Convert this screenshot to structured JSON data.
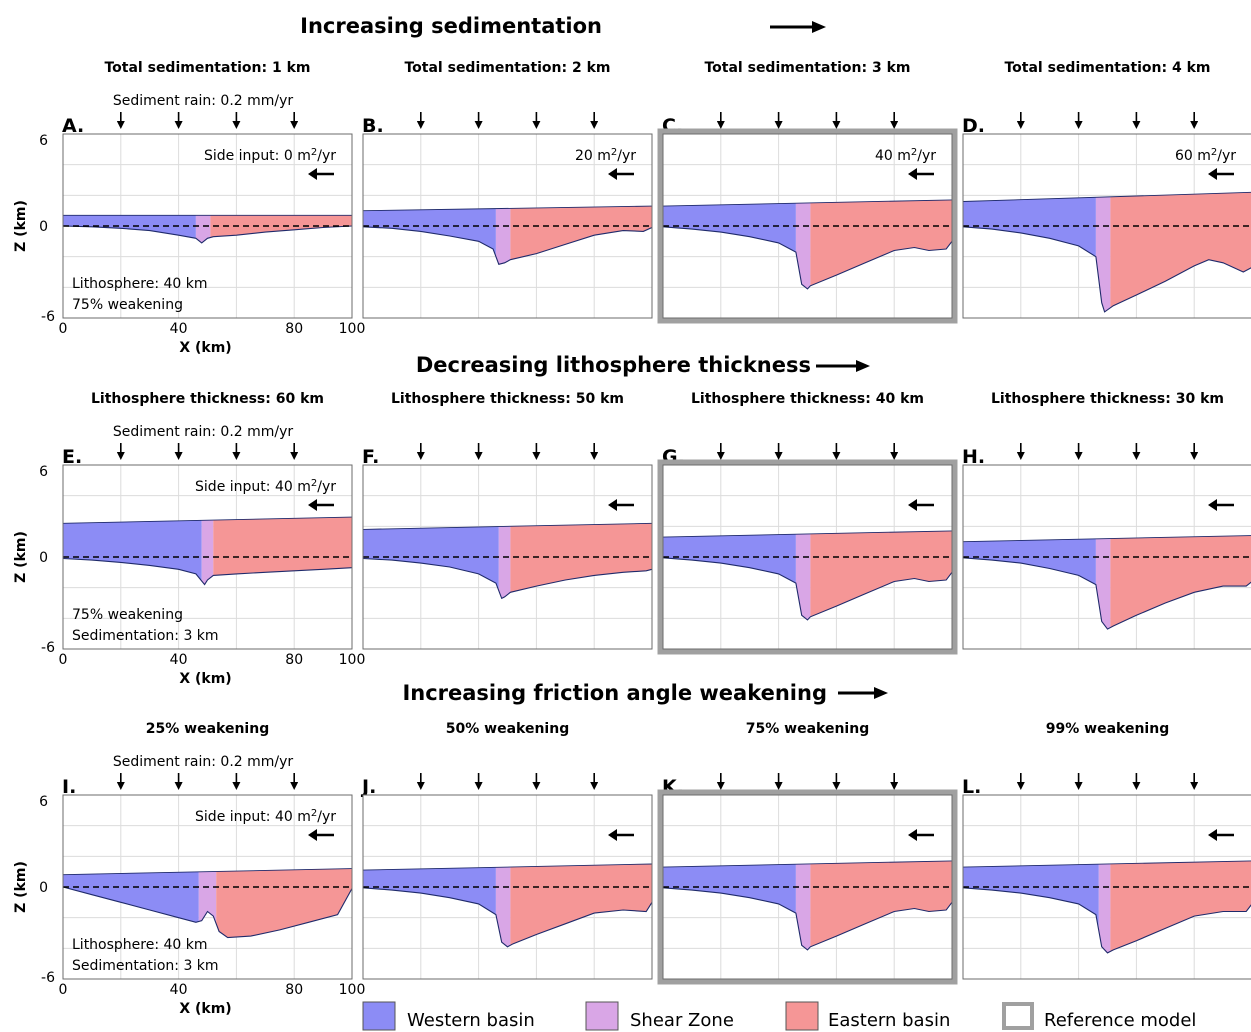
{
  "colors": {
    "western": "#8c8cf5",
    "shear": "#d9a6e6",
    "eastern": "#f59696",
    "reference_frame": "#a0a0a0",
    "grid": "#dcdcdc",
    "outline": "#1f2a6b"
  },
  "rows": [
    {
      "title": "Increasing sedimentation",
      "arrow_icon": "long-right-arrow-icon"
    },
    {
      "title": "Decreasing lithosphere thickness",
      "arrow_icon": "long-right-arrow-icon"
    },
    {
      "title": "Increasing friction angle weakening",
      "arrow_icon": "long-right-arrow-icon"
    }
  ],
  "axes": {
    "xlabel": "X (km)",
    "ylabel": "Z (km)",
    "xlim": [
      0,
      100
    ],
    "ylim": [
      -6,
      6
    ],
    "xticks": [
      "0",
      "40",
      "80",
      "100"
    ],
    "yticks": [
      "6",
      "0",
      "-6"
    ],
    "grid": true,
    "zero_line": "dashed"
  },
  "annotations": {
    "sediment_rain": "Sediment rain: 0.2 mm/yr",
    "side_input_prefix": "Side input: ",
    "unit_prefix": "m",
    "unit_sup": "2",
    "unit_suffix": "/yr",
    "row1_note1": "Lithosphere: 40 km",
    "row1_note2": "75% weakening",
    "row2_note1": "75% weakening",
    "row2_note2": "Sedimentation: 3 km",
    "row3_note1": "Lithosphere: 40 km",
    "row3_note2": "Sedimentation: 3 km"
  },
  "legend": [
    {
      "label": "Western basin",
      "key": "western"
    },
    {
      "label": "Shear Zone",
      "key": "shear"
    },
    {
      "label": "Eastern basin",
      "key": "eastern"
    },
    {
      "label": "Reference model",
      "key": "reference"
    }
  ],
  "chart_data": [
    {
      "id": "A",
      "type": "area",
      "title": "Total sedimentation: 1 km",
      "side_input": "0",
      "reference": false,
      "top": [
        [
          0,
          0.7
        ],
        [
          100,
          0.7
        ]
      ],
      "western_x": [
        0,
        46
      ],
      "shear_x": [
        46,
        51
      ],
      "bottom": [
        [
          0,
          0
        ],
        [
          10,
          -0.05
        ],
        [
          20,
          -0.15
        ],
        [
          30,
          -0.3
        ],
        [
          40,
          -0.6
        ],
        [
          46,
          -0.8
        ],
        [
          48,
          -1.1
        ],
        [
          50,
          -0.8
        ],
        [
          52,
          -0.7
        ],
        [
          60,
          -0.6
        ],
        [
          70,
          -0.4
        ],
        [
          80,
          -0.25
        ],
        [
          90,
          -0.1
        ],
        [
          100,
          0
        ]
      ]
    },
    {
      "id": "B",
      "type": "area",
      "title": "Total sedimentation: 2 km",
      "side_input": "20",
      "reference": false,
      "top": [
        [
          0,
          1.0
        ],
        [
          100,
          1.3
        ]
      ],
      "western_x": [
        0,
        46
      ],
      "shear_x": [
        46,
        51
      ],
      "bottom": [
        [
          0,
          -0.05
        ],
        [
          10,
          -0.15
        ],
        [
          20,
          -0.35
        ],
        [
          30,
          -0.65
        ],
        [
          40,
          -1.0
        ],
        [
          45,
          -1.5
        ],
        [
          47,
          -2.5
        ],
        [
          49,
          -2.4
        ],
        [
          51,
          -2.2
        ],
        [
          60,
          -1.8
        ],
        [
          70,
          -1.2
        ],
        [
          80,
          -0.6
        ],
        [
          90,
          -0.3
        ],
        [
          97,
          -0.35
        ],
        [
          100,
          -0.1
        ]
      ]
    },
    {
      "id": "C",
      "type": "area",
      "title": "Total sedimentation: 3 km",
      "side_input": "40",
      "reference": true,
      "top": [
        [
          0,
          1.3
        ],
        [
          100,
          1.7
        ]
      ],
      "western_x": [
        0,
        46
      ],
      "shear_x": [
        46,
        51
      ],
      "bottom": [
        [
          0,
          -0.05
        ],
        [
          10,
          -0.2
        ],
        [
          20,
          -0.4
        ],
        [
          30,
          -0.7
        ],
        [
          40,
          -1.1
        ],
        [
          46,
          -1.7
        ],
        [
          48,
          -3.8
        ],
        [
          50,
          -4.1
        ],
        [
          51,
          -3.9
        ],
        [
          60,
          -3.2
        ],
        [
          70,
          -2.4
        ],
        [
          80,
          -1.6
        ],
        [
          87,
          -1.4
        ],
        [
          92,
          -1.6
        ],
        [
          98,
          -1.5
        ],
        [
          100,
          -1.0
        ]
      ]
    },
    {
      "id": "D",
      "type": "area",
      "title": "Total sedimentation: 4 km",
      "side_input": "60",
      "reference": false,
      "top": [
        [
          0,
          1.6
        ],
        [
          100,
          2.2
        ]
      ],
      "western_x": [
        0,
        46
      ],
      "shear_x": [
        46,
        51
      ],
      "bottom": [
        [
          0,
          -0.05
        ],
        [
          10,
          -0.2
        ],
        [
          20,
          -0.45
        ],
        [
          30,
          -0.8
        ],
        [
          40,
          -1.3
        ],
        [
          46,
          -2.0
        ],
        [
          48,
          -5.0
        ],
        [
          49,
          -5.6
        ],
        [
          52,
          -5.2
        ],
        [
          60,
          -4.5
        ],
        [
          70,
          -3.6
        ],
        [
          80,
          -2.6
        ],
        [
          85,
          -2.2
        ],
        [
          90,
          -2.4
        ],
        [
          97,
          -3.0
        ],
        [
          100,
          -2.7
        ]
      ]
    },
    {
      "id": "E",
      "type": "area",
      "title": "Lithosphere thickness: 60 km",
      "side_input": "40",
      "reference": false,
      "top": [
        [
          0,
          2.2
        ],
        [
          100,
          2.6
        ]
      ],
      "western_x": [
        0,
        48
      ],
      "shear_x": [
        48,
        52
      ],
      "bottom": [
        [
          0,
          -0.1
        ],
        [
          10,
          -0.2
        ],
        [
          20,
          -0.35
        ],
        [
          30,
          -0.55
        ],
        [
          40,
          -0.8
        ],
        [
          46,
          -1.1
        ],
        [
          49,
          -1.8
        ],
        [
          50,
          -1.5
        ],
        [
          52,
          -1.2
        ],
        [
          60,
          -1.1
        ],
        [
          70,
          -1.0
        ],
        [
          80,
          -0.9
        ],
        [
          90,
          -0.8
        ],
        [
          100,
          -0.7
        ]
      ]
    },
    {
      "id": "F",
      "type": "area",
      "title": "Lithosphere thickness: 50 km",
      "side_input": "",
      "reference": false,
      "top": [
        [
          0,
          1.8
        ],
        [
          100,
          2.2
        ]
      ],
      "western_x": [
        0,
        47
      ],
      "shear_x": [
        47,
        51
      ],
      "bottom": [
        [
          0,
          -0.1
        ],
        [
          10,
          -0.2
        ],
        [
          20,
          -0.4
        ],
        [
          30,
          -0.65
        ],
        [
          40,
          -1.1
        ],
        [
          46,
          -1.7
        ],
        [
          48,
          -2.7
        ],
        [
          49,
          -2.6
        ],
        [
          51,
          -2.3
        ],
        [
          60,
          -1.9
        ],
        [
          70,
          -1.5
        ],
        [
          80,
          -1.2
        ],
        [
          90,
          -1.0
        ],
        [
          98,
          -0.9
        ],
        [
          100,
          -0.8
        ]
      ]
    },
    {
      "id": "G",
      "type": "area",
      "title": "Lithosphere thickness: 40 km",
      "side_input": "",
      "reference": true,
      "top": [
        [
          0,
          1.3
        ],
        [
          100,
          1.7
        ]
      ],
      "western_x": [
        0,
        46
      ],
      "shear_x": [
        46,
        51
      ],
      "bottom": [
        [
          0,
          -0.05
        ],
        [
          10,
          -0.2
        ],
        [
          20,
          -0.4
        ],
        [
          30,
          -0.7
        ],
        [
          40,
          -1.1
        ],
        [
          46,
          -1.7
        ],
        [
          48,
          -3.8
        ],
        [
          50,
          -4.1
        ],
        [
          51,
          -3.9
        ],
        [
          60,
          -3.2
        ],
        [
          70,
          -2.4
        ],
        [
          80,
          -1.6
        ],
        [
          87,
          -1.4
        ],
        [
          92,
          -1.6
        ],
        [
          98,
          -1.5
        ],
        [
          100,
          -1.0
        ]
      ]
    },
    {
      "id": "H",
      "type": "area",
      "title": "Lithosphere thickness: 30 km",
      "side_input": "",
      "reference": false,
      "top": [
        [
          0,
          1.0
        ],
        [
          100,
          1.4
        ]
      ],
      "western_x": [
        0,
        46
      ],
      "shear_x": [
        46,
        51
      ],
      "bottom": [
        [
          0,
          -0.05
        ],
        [
          10,
          -0.2
        ],
        [
          20,
          -0.4
        ],
        [
          30,
          -0.75
        ],
        [
          40,
          -1.2
        ],
        [
          46,
          -1.8
        ],
        [
          48,
          -4.2
        ],
        [
          50,
          -4.7
        ],
        [
          52,
          -4.5
        ],
        [
          60,
          -3.8
        ],
        [
          70,
          -3.0
        ],
        [
          80,
          -2.3
        ],
        [
          90,
          -1.9
        ],
        [
          98,
          -1.9
        ],
        [
          100,
          -1.6
        ]
      ]
    },
    {
      "id": "I",
      "type": "area",
      "title": "25% weakening",
      "side_input": "40",
      "reference": false,
      "top": [
        [
          0,
          0.8
        ],
        [
          100,
          1.2
        ]
      ],
      "western_x": [
        0,
        47
      ],
      "shear_x": [
        47,
        53
      ],
      "bottom": [
        [
          0,
          0
        ],
        [
          10,
          -0.5
        ],
        [
          20,
          -1.0
        ],
        [
          30,
          -1.5
        ],
        [
          40,
          -2.0
        ],
        [
          46,
          -2.3
        ],
        [
          48,
          -2.2
        ],
        [
          50,
          -1.6
        ],
        [
          52,
          -1.9
        ],
        [
          54,
          -2.9
        ],
        [
          57,
          -3.3
        ],
        [
          65,
          -3.2
        ],
        [
          75,
          -2.8
        ],
        [
          85,
          -2.3
        ],
        [
          95,
          -1.8
        ],
        [
          100,
          -0.1
        ]
      ]
    },
    {
      "id": "J",
      "type": "area",
      "title": "50% weakening",
      "side_input": "",
      "reference": false,
      "top": [
        [
          0,
          1.1
        ],
        [
          100,
          1.5
        ]
      ],
      "western_x": [
        0,
        46
      ],
      "shear_x": [
        46,
        51
      ],
      "bottom": [
        [
          0,
          -0.05
        ],
        [
          10,
          -0.2
        ],
        [
          20,
          -0.4
        ],
        [
          30,
          -0.7
        ],
        [
          40,
          -1.1
        ],
        [
          46,
          -1.8
        ],
        [
          48,
          -3.6
        ],
        [
          50,
          -3.9
        ],
        [
          52,
          -3.7
        ],
        [
          60,
          -3.1
        ],
        [
          70,
          -2.4
        ],
        [
          80,
          -1.7
        ],
        [
          90,
          -1.5
        ],
        [
          98,
          -1.6
        ],
        [
          100,
          -1.0
        ]
      ]
    },
    {
      "id": "K",
      "type": "area",
      "title": "75% weakening",
      "side_input": "",
      "reference": true,
      "top": [
        [
          0,
          1.3
        ],
        [
          100,
          1.7
        ]
      ],
      "western_x": [
        0,
        46
      ],
      "shear_x": [
        46,
        51
      ],
      "bottom": [
        [
          0,
          -0.05
        ],
        [
          10,
          -0.2
        ],
        [
          20,
          -0.4
        ],
        [
          30,
          -0.7
        ],
        [
          40,
          -1.1
        ],
        [
          46,
          -1.7
        ],
        [
          48,
          -3.8
        ],
        [
          50,
          -4.1
        ],
        [
          51,
          -3.9
        ],
        [
          60,
          -3.2
        ],
        [
          70,
          -2.4
        ],
        [
          80,
          -1.6
        ],
        [
          87,
          -1.4
        ],
        [
          92,
          -1.6
        ],
        [
          98,
          -1.5
        ],
        [
          100,
          -1.0
        ]
      ]
    },
    {
      "id": "L",
      "type": "area",
      "title": "99% weakening",
      "side_input": "",
      "reference": false,
      "top": [
        [
          0,
          1.3
        ],
        [
          100,
          1.7
        ]
      ],
      "western_x": [
        0,
        47
      ],
      "shear_x": [
        47,
        51
      ],
      "bottom": [
        [
          0,
          -0.05
        ],
        [
          10,
          -0.2
        ],
        [
          20,
          -0.4
        ],
        [
          30,
          -0.7
        ],
        [
          40,
          -1.1
        ],
        [
          46,
          -1.8
        ],
        [
          48,
          -3.9
        ],
        [
          50,
          -4.3
        ],
        [
          52,
          -4.1
        ],
        [
          60,
          -3.5
        ],
        [
          70,
          -2.7
        ],
        [
          80,
          -1.9
        ],
        [
          90,
          -1.6
        ],
        [
          98,
          -1.6
        ],
        [
          100,
          -1.1
        ]
      ]
    }
  ]
}
